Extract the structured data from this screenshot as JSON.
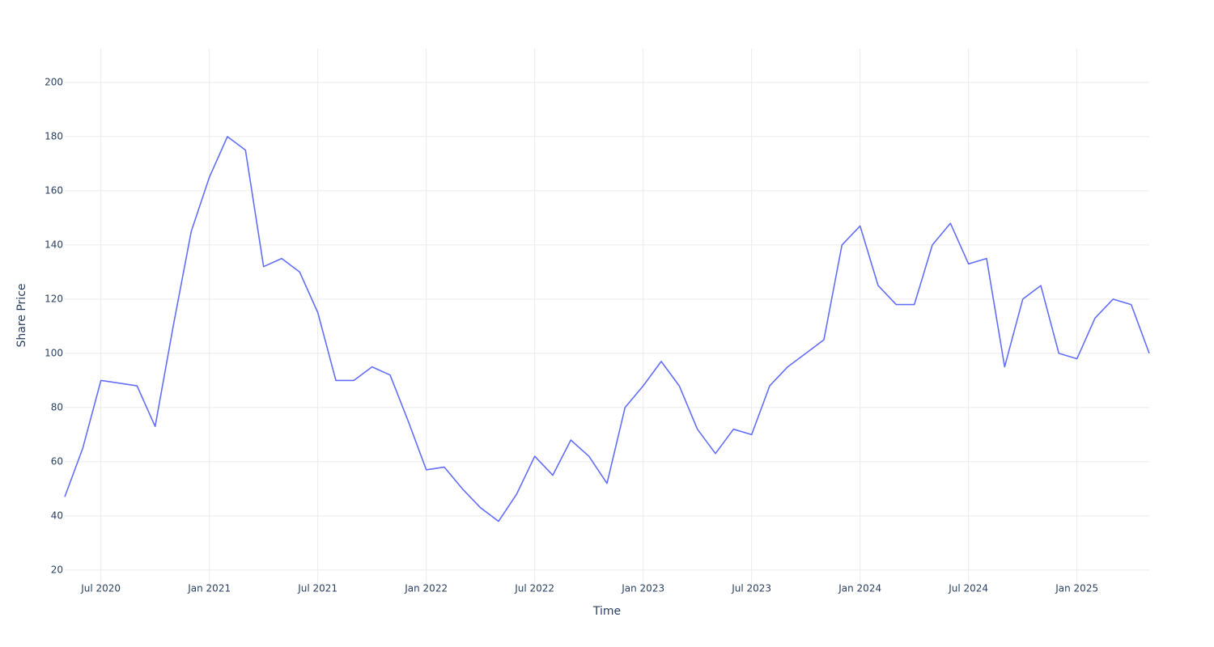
{
  "chart_data": {
    "type": "line",
    "x_label": "Time",
    "y_label": "Share Price",
    "x": [
      "2020-05",
      "2020-06",
      "2020-07",
      "2020-08",
      "2020-09",
      "2020-10",
      "2020-11",
      "2020-12",
      "2021-01",
      "2021-02",
      "2021-03",
      "2021-04",
      "2021-05",
      "2021-06",
      "2021-07",
      "2021-08",
      "2021-09",
      "2021-10",
      "2021-11",
      "2021-12",
      "2022-01",
      "2022-02",
      "2022-03",
      "2022-04",
      "2022-05",
      "2022-06",
      "2022-07",
      "2022-08",
      "2022-09",
      "2022-10",
      "2022-11",
      "2022-12",
      "2023-01",
      "2023-02",
      "2023-03",
      "2023-04",
      "2023-05",
      "2023-06",
      "2023-07",
      "2023-08",
      "2023-09",
      "2023-10",
      "2023-11",
      "2023-12",
      "2024-01",
      "2024-02",
      "2024-03",
      "2024-04",
      "2024-05",
      "2024-06",
      "2024-07",
      "2024-08",
      "2024-09",
      "2024-10",
      "2024-11",
      "2024-12",
      "2025-01",
      "2025-02",
      "2025-03",
      "2025-04",
      "2025-05"
    ],
    "series": [
      {
        "name": "Share Price",
        "color": "#636efa",
        "values": [
          47,
          65,
          90,
          89,
          88,
          73,
          110,
          145,
          165,
          180,
          175,
          132,
          135,
          130,
          115,
          90,
          90,
          95,
          92,
          75,
          57,
          58,
          50,
          43,
          38,
          48,
          62,
          55,
          68,
          62,
          52,
          80,
          88,
          97,
          88,
          72,
          63,
          72,
          70,
          88,
          95,
          100,
          105,
          140,
          147,
          125,
          118,
          118,
          140,
          148,
          133,
          135,
          95,
          120,
          125,
          100,
          98,
          113,
          120,
          118,
          100
        ]
      }
    ],
    "xlim": [
      "2020-05",
      "2025-05"
    ],
    "xticks": [
      {
        "value": "2020-07",
        "label": "Jul 2020"
      },
      {
        "value": "2021-01",
        "label": "Jan 2021"
      },
      {
        "value": "2021-07",
        "label": "Jul 2021"
      },
      {
        "value": "2022-01",
        "label": "Jan 2022"
      },
      {
        "value": "2022-07",
        "label": "Jul 2022"
      },
      {
        "value": "2023-01",
        "label": "Jan 2023"
      },
      {
        "value": "2023-07",
        "label": "Jul 2023"
      },
      {
        "value": "2024-01",
        "label": "Jan 2024"
      },
      {
        "value": "2024-07",
        "label": "Jul 2024"
      },
      {
        "value": "2025-01",
        "label": "Jan 2025"
      }
    ],
    "ylim": [
      11.6,
      212.5
    ],
    "yticks": [
      20,
      40,
      60,
      80,
      100,
      120,
      140,
      160,
      180,
      200
    ],
    "grid": true
  }
}
